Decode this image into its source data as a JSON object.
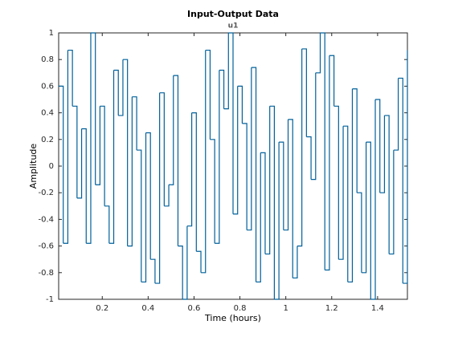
{
  "chart_data": {
    "type": "stairs",
    "title": "Input-Output Data",
    "subtitle": "u1",
    "x_label": "Time (hours)",
    "y_label": "Amplitude",
    "x": [
      0.01,
      0.03,
      0.05,
      0.07,
      0.09,
      0.11,
      0.13,
      0.15,
      0.17,
      0.19,
      0.21,
      0.23,
      0.25,
      0.27,
      0.29,
      0.31,
      0.33,
      0.35,
      0.37,
      0.39,
      0.41,
      0.43,
      0.45,
      0.47,
      0.49,
      0.51,
      0.53,
      0.55,
      0.57,
      0.59,
      0.61,
      0.63,
      0.65,
      0.67,
      0.69,
      0.71,
      0.73,
      0.75,
      0.77,
      0.79,
      0.81,
      0.83,
      0.85,
      0.87,
      0.89,
      0.91,
      0.93,
      0.95,
      0.97,
      0.99,
      1.01,
      1.03,
      1.05,
      1.07,
      1.09,
      1.11,
      1.13,
      1.15,
      1.17,
      1.19,
      1.21,
      1.23,
      1.25,
      1.27,
      1.29,
      1.31,
      1.33,
      1.35,
      1.37,
      1.39,
      1.41,
      1.43,
      1.45,
      1.47,
      1.49,
      1.51,
      1.53
    ],
    "values": [
      0.6,
      -0.58,
      0.87,
      0.45,
      -0.24,
      0.28,
      -0.58,
      1,
      -0.14,
      0.45,
      -0.3,
      -0.58,
      0.72,
      0.38,
      0.8,
      -0.6,
      0.52,
      0.12,
      -0.87,
      0.25,
      -0.7,
      -0.88,
      0.55,
      -0.3,
      -0.14,
      0.68,
      -0.6,
      -1,
      -0.45,
      0.4,
      -0.64,
      -0.8,
      0.87,
      0.2,
      -0.58,
      0.72,
      0.43,
      1,
      -0.36,
      0.6,
      0.32,
      -0.48,
      0.74,
      -0.87,
      0.1,
      -0.66,
      0.45,
      -1,
      0.18,
      -0.48,
      0.35,
      -0.84,
      -0.6,
      0.88,
      0.22,
      -0.1,
      0.7,
      1,
      -0.78,
      0.83,
      0.45,
      -0.7,
      0.3,
      -0.87,
      0.58,
      -0.2,
      -0.8,
      0.18,
      -1,
      0.5,
      -0.2,
      0.38,
      -0.66,
      0.12,
      0.66,
      -0.88,
      0.87
    ],
    "color": "#00609a",
    "xlim": [
      0.01,
      1.53
    ],
    "xticks": [
      0.2,
      0.4,
      0.6,
      0.8,
      1,
      1.2,
      1.4
    ],
    "ylim": [
      -1,
      1
    ],
    "yticks": [
      -1,
      -0.8,
      -0.6,
      -0.4,
      -0.2,
      0,
      0.2,
      0.4,
      0.6,
      0.8,
      1
    ],
    "grid": false
  }
}
